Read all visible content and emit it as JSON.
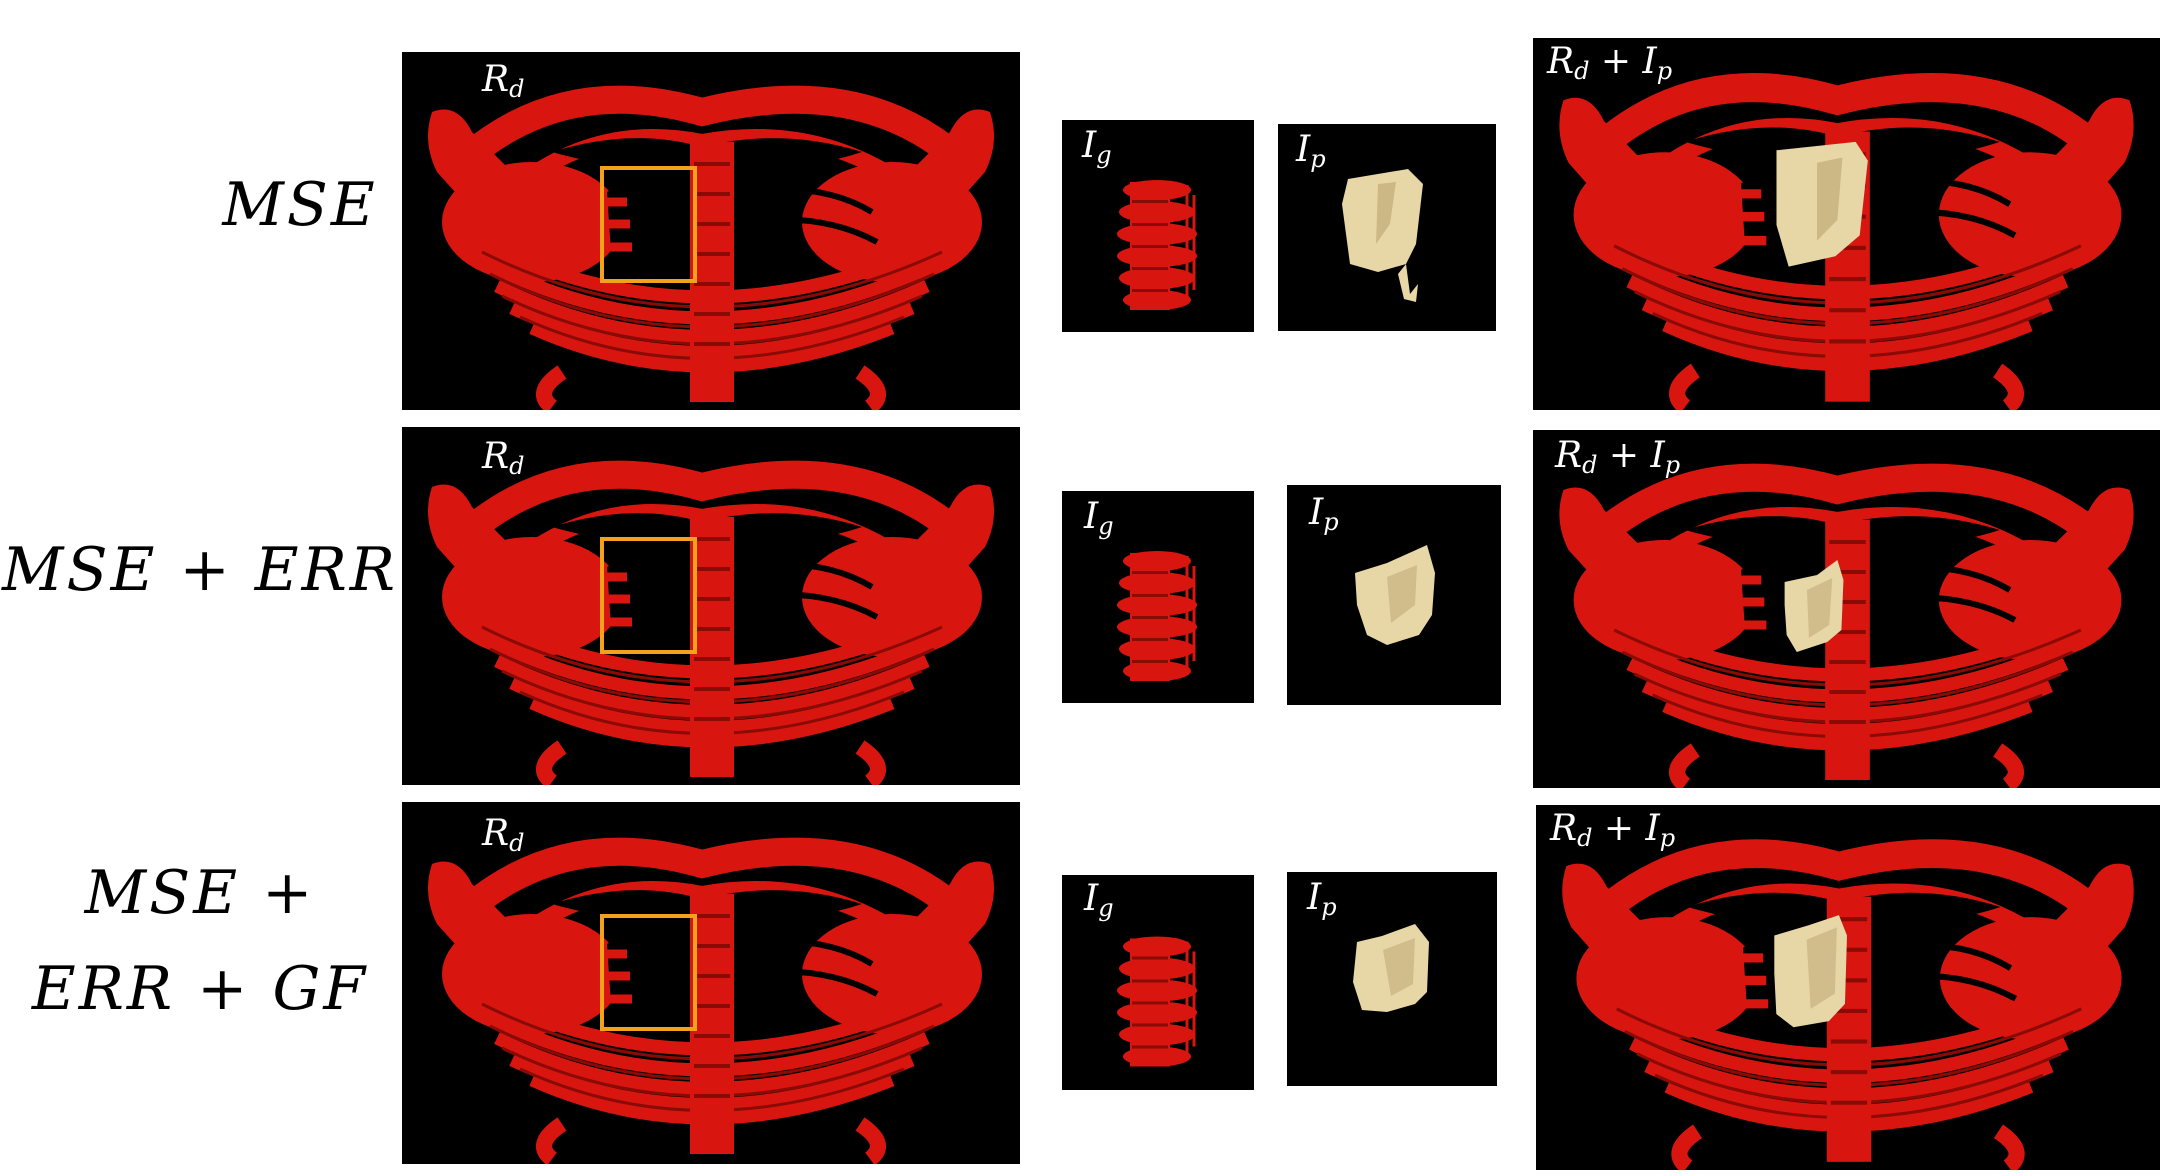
{
  "rows": [
    {
      "label_lines": [
        "MSE"
      ],
      "Rd_label": "R",
      "Rd_sub": "d",
      "Ig_label": "I",
      "Ig_sub": "g",
      "Ip_label": "I",
      "Ip_sub": "p",
      "overlay_label": "R",
      "overlay_sub": "d",
      "overlay_plus": " + I",
      "overlay_sub2": "p"
    },
    {
      "label_lines": [
        "MSE + ERR"
      ],
      "Rd_label": "R",
      "Rd_sub": "d",
      "Ig_label": "I",
      "Ig_sub": "g",
      "Ip_label": "I",
      "Ip_sub": "p",
      "overlay_label": "R",
      "overlay_sub": "d",
      "overlay_plus": " + I",
      "overlay_sub2": "p"
    },
    {
      "label_lines": [
        "MSE +",
        "ERR + GF"
      ],
      "Rd_label": "R",
      "Rd_sub": "d",
      "Ig_label": "I",
      "Ig_sub": "g",
      "Ip_label": "I",
      "Ip_sub": "p",
      "overlay_label": "R",
      "overlay_sub": "d",
      "overlay_plus": " + I",
      "overlay_sub2": "p"
    }
  ],
  "colors": {
    "bone": "#d8160f",
    "bone_dark": "#8a0a05",
    "implant": "#e8d7a6",
    "implant_dark": "#b9a470",
    "highlight_box": "#f2a31b",
    "background": "#000000"
  }
}
